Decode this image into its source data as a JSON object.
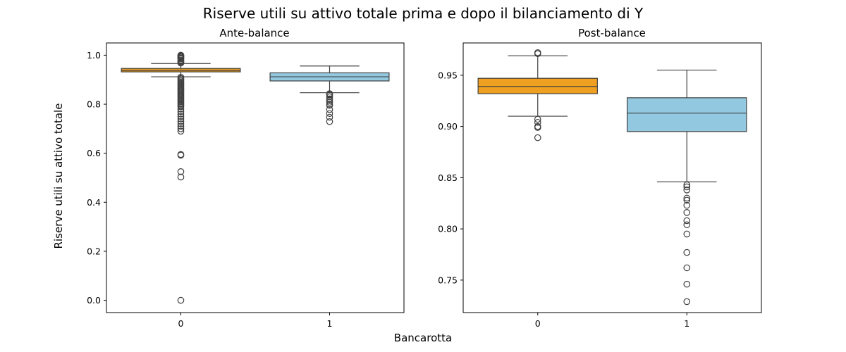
{
  "figure": {
    "suptitle": "Riserve utili su attivo totale prima e dopo il bilanciamento di Y",
    "xlabel": "Bancarotta",
    "ylabel": "Riserve utili su attivo totale"
  },
  "colors": {
    "class_0": "#f0a020",
    "class_1": "#92c9e0",
    "line": "#404040",
    "axes": "#000000"
  },
  "chart_data": [
    {
      "type": "box",
      "title": "Ante-balance",
      "categories": [
        "0",
        "1"
      ],
      "ylim": [
        -0.05,
        1.05
      ],
      "yticks": [
        0.0,
        0.2,
        0.4,
        0.6,
        0.8,
        1.0
      ],
      "ytick_labels": [
        "0.0",
        "0.2",
        "0.4",
        "0.6",
        "0.8",
        "1.0"
      ],
      "grid": false,
      "boxes": [
        {
          "category": "0",
          "color": "#f0a020",
          "q1": 0.932,
          "median": 0.938,
          "q3": 0.946,
          "whisker_low": 0.912,
          "whisker_high": 0.966,
          "outliers": [
            1.0,
            0.998,
            0.995,
            0.992,
            0.988,
            0.985,
            0.98,
            0.975,
            0.972,
            0.968,
            0.91,
            0.905,
            0.9,
            0.895,
            0.89,
            0.885,
            0.88,
            0.875,
            0.87,
            0.865,
            0.86,
            0.855,
            0.85,
            0.845,
            0.84,
            0.835,
            0.83,
            0.825,
            0.82,
            0.815,
            0.81,
            0.805,
            0.8,
            0.795,
            0.79,
            0.78,
            0.77,
            0.76,
            0.75,
            0.74,
            0.73,
            0.72,
            0.71,
            0.7,
            0.69,
            0.595,
            0.592,
            0.525,
            0.503,
            0.0
          ]
        },
        {
          "category": "1",
          "color": "#92c9e0",
          "q1": 0.895,
          "median": 0.912,
          "q3": 0.928,
          "whisker_low": 0.847,
          "whisker_high": 0.956,
          "outliers": [
            0.843,
            0.84,
            0.837,
            0.83,
            0.822,
            0.815,
            0.808,
            0.8,
            0.795,
            0.778,
            0.762,
            0.747,
            0.729
          ]
        }
      ]
    },
    {
      "type": "box",
      "title": "Post-balance",
      "categories": [
        "0",
        "1"
      ],
      "ylim": [
        0.7183,
        0.9815
      ],
      "yticks": [
        0.75,
        0.8,
        0.85,
        0.9,
        0.95
      ],
      "ytick_labels": [
        "0.75",
        "0.80",
        "0.85",
        "0.90",
        "0.95"
      ],
      "grid": false,
      "boxes": [
        {
          "category": "0",
          "color": "#f0a020",
          "q1": 0.932,
          "median": 0.939,
          "q3": 0.947,
          "whisker_low": 0.91,
          "whisker_high": 0.969,
          "outliers": [
            0.972,
            0.971,
            0.907,
            0.904,
            0.9,
            0.899,
            0.889
          ]
        },
        {
          "category": "1",
          "color": "#92c9e0",
          "q1": 0.895,
          "median": 0.913,
          "q3": 0.928,
          "whisker_low": 0.846,
          "whisker_high": 0.955,
          "outliers": [
            0.843,
            0.841,
            0.838,
            0.83,
            0.828,
            0.823,
            0.816,
            0.808,
            0.804,
            0.795,
            0.777,
            0.762,
            0.746,
            0.729
          ]
        }
      ]
    }
  ]
}
